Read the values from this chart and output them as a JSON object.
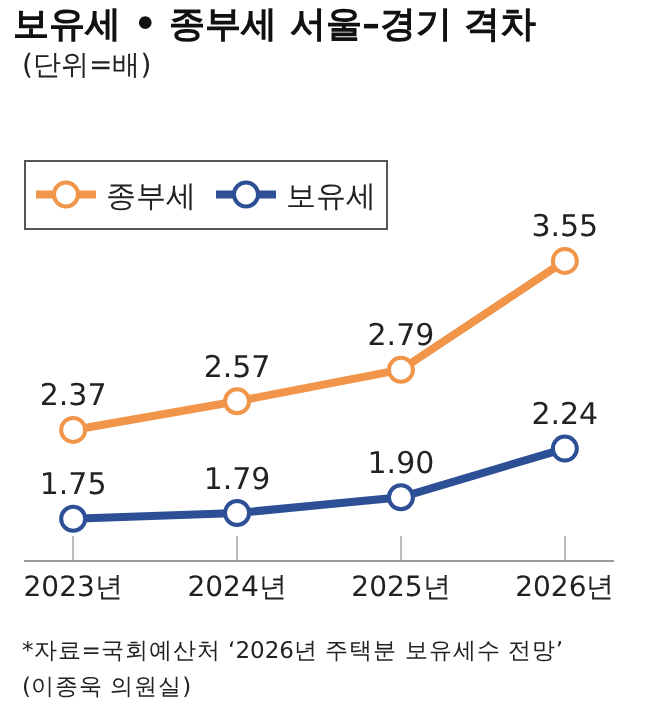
{
  "chart_data": {
    "type": "line",
    "title": "보유세 • 종부세 서울–경기 격차",
    "subtitle": "(단위=배)",
    "categories": [
      "2023년",
      "2024년",
      "2025년",
      "2026년"
    ],
    "series": [
      {
        "name": "종부세",
        "color": "#f0954a",
        "values": [
          2.37,
          2.57,
          2.79,
          3.55
        ],
        "value_labels": [
          "2.37",
          "2.57",
          "2.79",
          "3.55"
        ]
      },
      {
        "name": "보유세",
        "color": "#2d4f96",
        "values": [
          1.75,
          1.79,
          1.9,
          2.24
        ],
        "value_labels": [
          "1.75",
          "1.79",
          "1.90",
          "2.24"
        ]
      }
    ],
    "marker": "circle",
    "line_style": "solid",
    "legend": "top left",
    "annotations": [
      "*자료=국회예산처 ‘2026년 주택분 보유세수 전망’",
      "(이종욱 의원실)"
    ]
  }
}
